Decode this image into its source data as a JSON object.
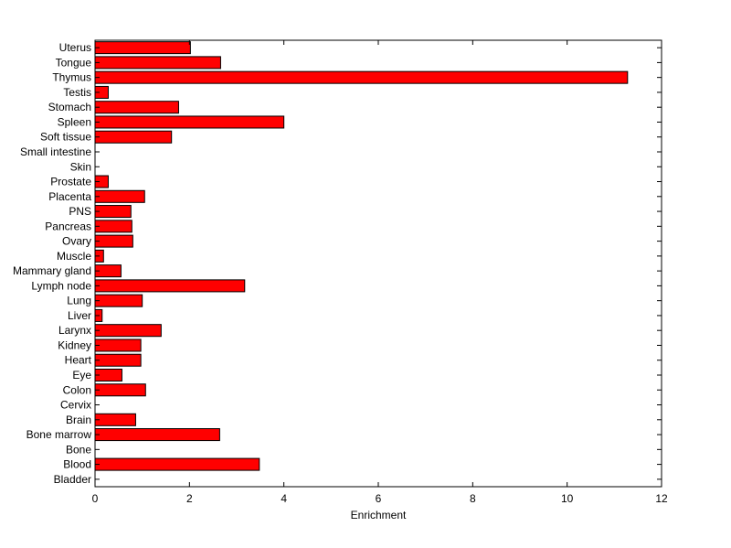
{
  "chart_data": {
    "type": "bar",
    "orientation": "horizontal",
    "xlabel": "Enrichment",
    "ylabel": "",
    "xlim": [
      0,
      12
    ],
    "xticks": [
      0,
      2,
      4,
      6,
      8,
      10,
      12
    ],
    "grid": false,
    "bar_color": "#ff0000",
    "categories": [
      "Bladder",
      "Blood",
      "Bone",
      "Bone marrow",
      "Brain",
      "Cervix",
      "Colon",
      "Eye",
      "Heart",
      "Kidney",
      "Larynx",
      "Liver",
      "Lung",
      "Lymph node",
      "Mammary gland",
      "Muscle",
      "Ovary",
      "Pancreas",
      "PNS",
      "Placenta",
      "Prostate",
      "Skin",
      "Small intestine",
      "Soft tissue",
      "Spleen",
      "Stomach",
      "Testis",
      "Thymus",
      "Tongue",
      "Uterus"
    ],
    "values": [
      0,
      3.48,
      0,
      2.64,
      0.86,
      0,
      1.07,
      0.57,
      0.97,
      0.97,
      1.4,
      0.15,
      1.0,
      3.17,
      0.55,
      0.18,
      0.8,
      0.78,
      0.76,
      1.05,
      0.28,
      0,
      0,
      1.62,
      4.0,
      1.77,
      0.28,
      11.28,
      2.66,
      2.02
    ]
  }
}
